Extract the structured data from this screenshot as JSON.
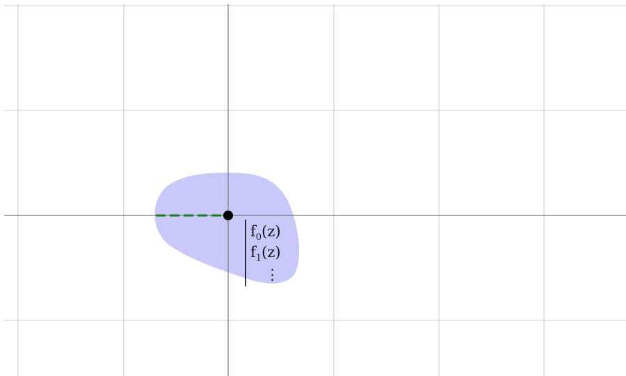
{
  "diagram": {
    "grid": true,
    "axes": true,
    "region_color": "#c8c8fa",
    "cut_color": "#1e7a1e",
    "point_color": "#000000",
    "functions": [
      {
        "name": "f",
        "index": "0",
        "argument": "(z)"
      },
      {
        "name": "f",
        "index": "1",
        "argument": "(z)"
      }
    ],
    "continuation": "⋮"
  }
}
